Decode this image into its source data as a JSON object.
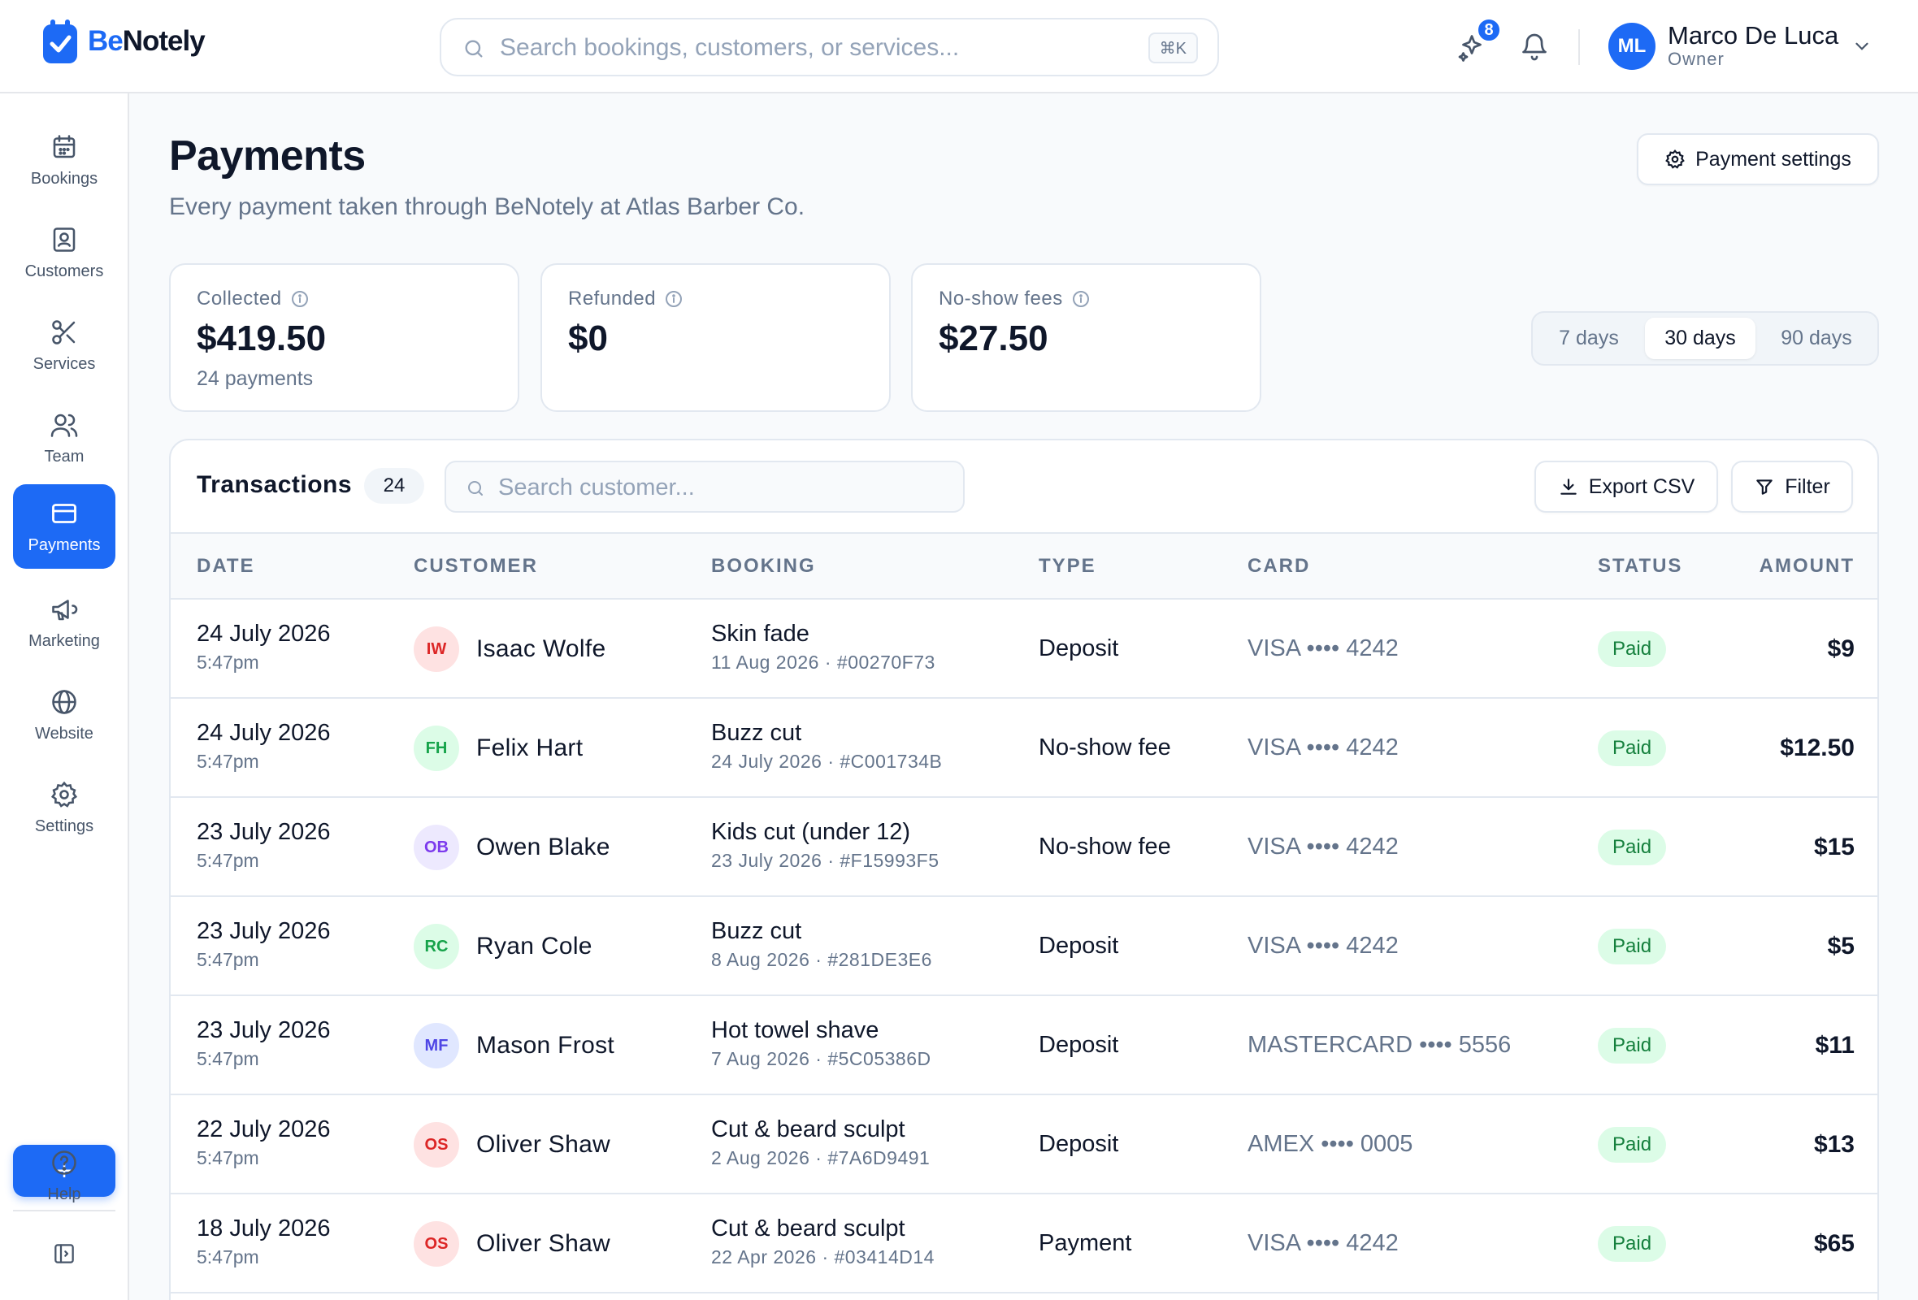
{
  "brand": {
    "name_part1": "Be",
    "name_part2": "Notely",
    "accent": "#1d6af5"
  },
  "search": {
    "placeholder": "Search bookings, customers, or services...",
    "shortcut": "⌘K"
  },
  "header": {
    "notification_badge": "8",
    "user_initials": "ML",
    "user_name": "Marco De Luca",
    "user_role": "Owner"
  },
  "sidebar": {
    "items": [
      {
        "label": "Bookings",
        "icon": "calendar-icon"
      },
      {
        "label": "Customers",
        "icon": "contact-icon"
      },
      {
        "label": "Services",
        "icon": "scissors-icon"
      },
      {
        "label": "Team",
        "icon": "users-icon"
      },
      {
        "label": "Payments",
        "icon": "credit-card-icon",
        "active": true
      },
      {
        "label": "Marketing",
        "icon": "megaphone-icon"
      },
      {
        "label": "Website",
        "icon": "globe-icon"
      },
      {
        "label": "Settings",
        "icon": "gear-icon"
      }
    ],
    "add_label": "+",
    "help_label": "Help"
  },
  "page": {
    "title": "Payments",
    "subtitle": "Every payment taken through BeNotely at Atlas Barber Co.",
    "settings_button": "Payment settings"
  },
  "stats": [
    {
      "label": "Collected",
      "value": "$419.50",
      "caption": "24 payments"
    },
    {
      "label": "Refunded",
      "value": "$0",
      "caption": ""
    },
    {
      "label": "No-show fees",
      "value": "$27.50",
      "caption": ""
    }
  ],
  "range": {
    "options": [
      "7 days",
      "30 days",
      "90 days"
    ],
    "selected": "30 days"
  },
  "transactions": {
    "title": "Transactions",
    "count": "24",
    "search_placeholder": "Search customer...",
    "export_label": "Export CSV",
    "filter_label": "Filter",
    "columns": [
      "DATE",
      "CUSTOMER",
      "BOOKING",
      "TYPE",
      "CARD",
      "STATUS",
      "AMOUNT"
    ],
    "rows": [
      {
        "date": "24 July 2026",
        "time": "5:47pm",
        "initials": "IW",
        "customer": "Isaac Wolfe",
        "service": "Skin fade",
        "ref": "11 Aug 2026 · #00270F73",
        "type": "Deposit",
        "card": "VISA •••• 4242",
        "status": "Paid",
        "amount": "$9",
        "avatar_bg": "#fee2e2",
        "avatar_fg": "#dc2626"
      },
      {
        "date": "24 July 2026",
        "time": "5:47pm",
        "initials": "FH",
        "customer": "Felix Hart",
        "service": "Buzz cut",
        "ref": "24 July 2026 · #C001734B",
        "type": "No-show fee",
        "card": "VISA •••• 4242",
        "status": "Paid",
        "amount": "$12.50",
        "avatar_bg": "#dcfce7",
        "avatar_fg": "#16a34a"
      },
      {
        "date": "23 July 2026",
        "time": "5:47pm",
        "initials": "OB",
        "customer": "Owen Blake",
        "service": "Kids cut (under 12)",
        "ref": "23 July 2026 · #F15993F5",
        "type": "No-show fee",
        "card": "VISA •••• 4242",
        "status": "Paid",
        "amount": "$15",
        "avatar_bg": "#ede9fe",
        "avatar_fg": "#7c3aed"
      },
      {
        "date": "23 July 2026",
        "time": "5:47pm",
        "initials": "RC",
        "customer": "Ryan Cole",
        "service": "Buzz cut",
        "ref": "8 Aug 2026 · #281DE3E6",
        "type": "Deposit",
        "card": "VISA •••• 4242",
        "status": "Paid",
        "amount": "$5",
        "avatar_bg": "#dcfce7",
        "avatar_fg": "#16a34a"
      },
      {
        "date": "23 July 2026",
        "time": "5:47pm",
        "initials": "MF",
        "customer": "Mason Frost",
        "service": "Hot towel shave",
        "ref": "7 Aug 2026 · #5C05386D",
        "type": "Deposit",
        "card": "MASTERCARD •••• 5556",
        "status": "Paid",
        "amount": "$11",
        "avatar_bg": "#e0e7ff",
        "avatar_fg": "#4f46e5"
      },
      {
        "date": "22 July 2026",
        "time": "5:47pm",
        "initials": "OS",
        "customer": "Oliver Shaw",
        "service": "Cut & beard sculpt",
        "ref": "2 Aug 2026 · #7A6D9491",
        "type": "Deposit",
        "card": "AMEX •••• 0005",
        "status": "Paid",
        "amount": "$13",
        "avatar_bg": "#fee2e2",
        "avatar_fg": "#dc2626"
      },
      {
        "date": "18 July 2026",
        "time": "5:47pm",
        "initials": "OS",
        "customer": "Oliver Shaw",
        "service": "Cut & beard sculpt",
        "ref": "22 Apr 2026 · #03414D14",
        "type": "Payment",
        "card": "VISA •••• 4242",
        "status": "Paid",
        "amount": "$65",
        "avatar_bg": "#fee2e2",
        "avatar_fg": "#dc2626"
      }
    ]
  }
}
